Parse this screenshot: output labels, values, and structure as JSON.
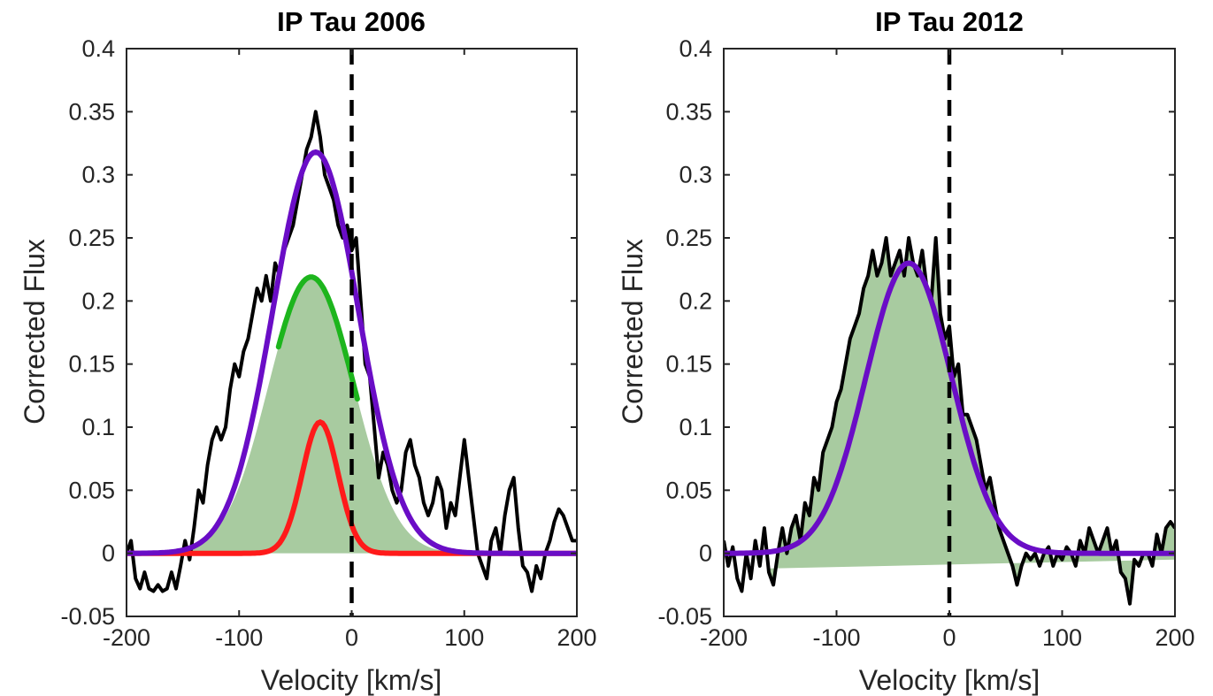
{
  "chart_data": [
    {
      "type": "line",
      "title": "IP Tau 2006",
      "xlabel": "Velocity [km/s]",
      "ylabel": "Corrected Flux",
      "xlim": [
        -200,
        200
      ],
      "ylim": [
        -0.05,
        0.4
      ],
      "xticks": [
        "-200",
        "-100",
        "0",
        "100",
        "200"
      ],
      "yticks": [
        "-0.05",
        "0",
        "0.05",
        "0.1",
        "0.15",
        "0.2",
        "0.25",
        "0.3",
        "0.35",
        "0.4"
      ],
      "grid": false,
      "reference_line": {
        "x": 0,
        "style": "dashed",
        "color": "#000000"
      },
      "filled_region": {
        "color": "#a8cba0",
        "description": "broad component area"
      },
      "observed": {
        "color": "#000000",
        "points": [
          [
            -200,
            0.0
          ],
          [
            -196,
            0.01
          ],
          [
            -192,
            -0.02
          ],
          [
            -188,
            -0.028
          ],
          [
            -184,
            -0.015
          ],
          [
            -180,
            -0.028
          ],
          [
            -176,
            -0.03
          ],
          [
            -172,
            -0.025
          ],
          [
            -168,
            -0.03
          ],
          [
            -164,
            -0.028
          ],
          [
            -160,
            -0.015
          ],
          [
            -156,
            -0.028
          ],
          [
            -152,
            -0.01
          ],
          [
            -148,
            0.01
          ],
          [
            -144,
            -0.005
          ],
          [
            -140,
            0.02
          ],
          [
            -136,
            0.05
          ],
          [
            -132,
            0.04
          ],
          [
            -128,
            0.07
          ],
          [
            -124,
            0.09
          ],
          [
            -120,
            0.1
          ],
          [
            -116,
            0.09
          ],
          [
            -112,
            0.1
          ],
          [
            -108,
            0.13
          ],
          [
            -104,
            0.15
          ],
          [
            -100,
            0.14
          ],
          [
            -96,
            0.16
          ],
          [
            -92,
            0.17
          ],
          [
            -88,
            0.19
          ],
          [
            -84,
            0.21
          ],
          [
            -80,
            0.2
          ],
          [
            -76,
            0.22
          ],
          [
            -72,
            0.2
          ],
          [
            -68,
            0.23
          ],
          [
            -64,
            0.22
          ],
          [
            -60,
            0.24
          ],
          [
            -56,
            0.25
          ],
          [
            -52,
            0.26
          ],
          [
            -48,
            0.28
          ],
          [
            -44,
            0.3
          ],
          [
            -40,
            0.32
          ],
          [
            -36,
            0.33
          ],
          [
            -32,
            0.35
          ],
          [
            -28,
            0.33
          ],
          [
            -24,
            0.3
          ],
          [
            -20,
            0.29
          ],
          [
            -16,
            0.28
          ],
          [
            -12,
            0.26
          ],
          [
            -8,
            0.25
          ],
          [
            -4,
            0.26
          ],
          [
            0,
            0.24
          ],
          [
            4,
            0.25
          ],
          [
            8,
            0.2
          ],
          [
            12,
            0.15
          ],
          [
            16,
            0.14
          ],
          [
            20,
            0.1
          ],
          [
            24,
            0.06
          ],
          [
            28,
            0.08
          ],
          [
            32,
            0.07
          ],
          [
            36,
            0.05
          ],
          [
            40,
            0.04
          ],
          [
            44,
            0.05
          ],
          [
            48,
            0.08
          ],
          [
            52,
            0.09
          ],
          [
            56,
            0.07
          ],
          [
            60,
            0.06
          ],
          [
            64,
            0.04
          ],
          [
            68,
            0.03
          ],
          [
            72,
            0.04
          ],
          [
            76,
            0.06
          ],
          [
            80,
            0.05
          ],
          [
            84,
            0.02
          ],
          [
            88,
            0.04
          ],
          [
            92,
            0.03
          ],
          [
            96,
            0.06
          ],
          [
            100,
            0.09
          ],
          [
            104,
            0.06
          ],
          [
            108,
            0.03
          ],
          [
            112,
            0.0
          ],
          [
            116,
            -0.01
          ],
          [
            120,
            -0.02
          ],
          [
            124,
            0.01
          ],
          [
            128,
            0.02
          ],
          [
            132,
            0.0
          ],
          [
            136,
            0.03
          ],
          [
            140,
            0.05
          ],
          [
            144,
            0.06
          ],
          [
            148,
            0.02
          ],
          [
            152,
            -0.01
          ],
          [
            156,
            -0.015
          ],
          [
            160,
            -0.03
          ],
          [
            164,
            -0.01
          ],
          [
            168,
            -0.02
          ],
          [
            172,
            0.0
          ],
          [
            176,
            0.01
          ],
          [
            180,
            0.025
          ],
          [
            184,
            0.035
          ],
          [
            188,
            0.03
          ],
          [
            192,
            0.02
          ],
          [
            196,
            0.01
          ],
          [
            200,
            0.01
          ]
        ]
      },
      "gaussians": [
        {
          "color": "#6a0dc6",
          "amplitude": 0.318,
          "center": -32,
          "sigma": 38
        },
        {
          "color": "#1db51d",
          "amplitude": 0.219,
          "center": -36,
          "sigma": 38,
          "visible_from": -65,
          "visible_to": 5
        },
        {
          "color": "#ff1a1a",
          "amplitude": 0.104,
          "center": -28,
          "sigma": 16
        }
      ]
    },
    {
      "type": "line",
      "title": "IP Tau 2012",
      "xlabel": "Velocity [km/s]",
      "ylabel": "Corrected Flux",
      "xlim": [
        -200,
        200
      ],
      "ylim": [
        -0.05,
        0.4
      ],
      "xticks": [
        "-200",
        "-100",
        "0",
        "100",
        "200"
      ],
      "yticks": [
        "-0.05",
        "0",
        "0.05",
        "0.1",
        "0.15",
        "0.2",
        "0.25",
        "0.3",
        "0.35",
        "0.4"
      ],
      "grid": false,
      "reference_line": {
        "x": 0,
        "style": "dashed",
        "color": "#000000"
      },
      "filled_region": {
        "color": "#a8cba0",
        "description": "observed profile area"
      },
      "observed": {
        "color": "#000000",
        "points": [
          [
            -200,
            0.01
          ],
          [
            -196,
            -0.01
          ],
          [
            -192,
            0.005
          ],
          [
            -188,
            -0.02
          ],
          [
            -184,
            -0.03
          ],
          [
            -180,
            0.0
          ],
          [
            -176,
            -0.02
          ],
          [
            -172,
            0.01
          ],
          [
            -168,
            -0.01
          ],
          [
            -164,
            0.02
          ],
          [
            -160,
            -0.015
          ],
          [
            -156,
            -0.025
          ],
          [
            -152,
            0.0
          ],
          [
            -148,
            0.02
          ],
          [
            -144,
            0.0
          ],
          [
            -140,
            0.02
          ],
          [
            -136,
            0.03
          ],
          [
            -132,
            0.01
          ],
          [
            -128,
            0.04
          ],
          [
            -124,
            0.03
          ],
          [
            -120,
            0.06
          ],
          [
            -116,
            0.05
          ],
          [
            -112,
            0.08
          ],
          [
            -108,
            0.09
          ],
          [
            -104,
            0.1
          ],
          [
            -100,
            0.12
          ],
          [
            -96,
            0.13
          ],
          [
            -92,
            0.15
          ],
          [
            -88,
            0.17
          ],
          [
            -84,
            0.18
          ],
          [
            -80,
            0.19
          ],
          [
            -76,
            0.21
          ],
          [
            -72,
            0.22
          ],
          [
            -68,
            0.24
          ],
          [
            -64,
            0.22
          ],
          [
            -60,
            0.23
          ],
          [
            -56,
            0.25
          ],
          [
            -52,
            0.22
          ],
          [
            -48,
            0.23
          ],
          [
            -44,
            0.24
          ],
          [
            -40,
            0.22
          ],
          [
            -36,
            0.25
          ],
          [
            -32,
            0.23
          ],
          [
            -28,
            0.22
          ],
          [
            -24,
            0.24
          ],
          [
            -20,
            0.21
          ],
          [
            -16,
            0.2
          ],
          [
            -12,
            0.25
          ],
          [
            -8,
            0.19
          ],
          [
            -4,
            0.17
          ],
          [
            0,
            0.18
          ],
          [
            4,
            0.14
          ],
          [
            8,
            0.15
          ],
          [
            12,
            0.11
          ],
          [
            16,
            0.11
          ],
          [
            20,
            0.1
          ],
          [
            24,
            0.09
          ],
          [
            28,
            0.07
          ],
          [
            32,
            0.05
          ],
          [
            36,
            0.06
          ],
          [
            40,
            0.04
          ],
          [
            44,
            0.02
          ],
          [
            48,
            0.01
          ],
          [
            52,
            0.0
          ],
          [
            56,
            -0.01
          ],
          [
            60,
            -0.025
          ],
          [
            64,
            -0.01
          ],
          [
            68,
            0.0
          ],
          [
            72,
            -0.005
          ],
          [
            76,
            0.0
          ],
          [
            80,
            -0.01
          ],
          [
            84,
            0.0
          ],
          [
            88,
            0.005
          ],
          [
            92,
            -0.01
          ],
          [
            96,
            0.0
          ],
          [
            100,
            -0.005
          ],
          [
            104,
            0.005
          ],
          [
            108,
            0.0
          ],
          [
            112,
            -0.01
          ],
          [
            116,
            0.01
          ],
          [
            120,
            0.0
          ],
          [
            124,
            0.02
          ],
          [
            128,
            0.01
          ],
          [
            132,
            0.0
          ],
          [
            136,
            0.01
          ],
          [
            140,
            0.02
          ],
          [
            144,
            0.0
          ],
          [
            148,
            0.01
          ],
          [
            152,
            -0.015
          ],
          [
            156,
            -0.02
          ],
          [
            160,
            -0.04
          ],
          [
            164,
            -0.005
          ],
          [
            168,
            -0.01
          ],
          [
            172,
            0.0
          ],
          [
            176,
            0.0
          ],
          [
            180,
            -0.01
          ],
          [
            184,
            0.015
          ],
          [
            188,
            0.0
          ],
          [
            192,
            0.02
          ],
          [
            196,
            0.025
          ],
          [
            200,
            0.02
          ]
        ]
      },
      "gaussians": [
        {
          "color": "#6a0dc6",
          "amplitude": 0.23,
          "center": -36,
          "sigma": 38
        }
      ]
    }
  ]
}
